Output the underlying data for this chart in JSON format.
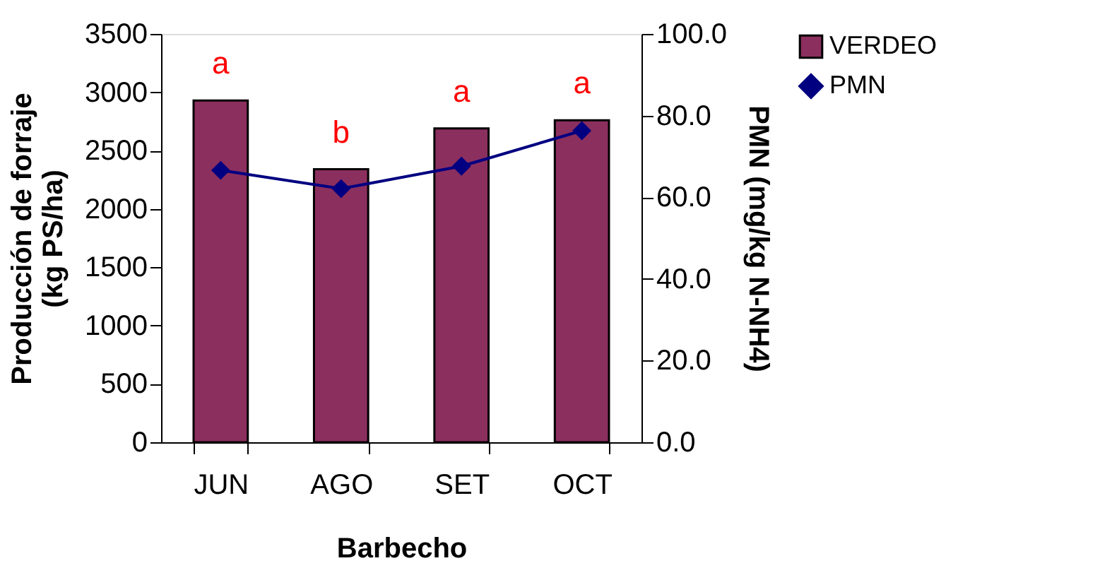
{
  "chart_data": {
    "type": "bar",
    "categories": [
      "JUN",
      "AGO",
      "SET",
      "OCT"
    ],
    "series": [
      {
        "name": "VERDEO",
        "color": "#8b2f5f",
        "values": [
          2930,
          2340,
          2690,
          2760
        ]
      },
      {
        "name": "PMN",
        "type": "line",
        "axis": "y2",
        "color": "#000080",
        "marker": "diamond",
        "values": [
          66.6,
          62.1,
          67.6,
          76.3
        ]
      }
    ],
    "xlabel": "Barbecho",
    "ylabel": "Producción de forraje\n(kg PS/ha)",
    "y2label": "PMN (mg/kg N-NH4)",
    "ylim": [
      0,
      3500
    ],
    "yticks": [
      0,
      500,
      1000,
      1500,
      2000,
      2500,
      3000,
      3500
    ],
    "y2lim": [
      0,
      100
    ],
    "y2ticks": [
      {
        "value": 0,
        "label": "0.0"
      },
      {
        "value": 20,
        "label": "20.0"
      },
      {
        "value": 40,
        "label": "40.0"
      },
      {
        "value": 60,
        "label": "60.0"
      },
      {
        "value": 80,
        "label": "80.0"
      },
      {
        "value": 100,
        "label": "100.0"
      }
    ],
    "annotations": [
      "a",
      "b",
      "a",
      "a"
    ],
    "legend": "right",
    "grid": false
  }
}
